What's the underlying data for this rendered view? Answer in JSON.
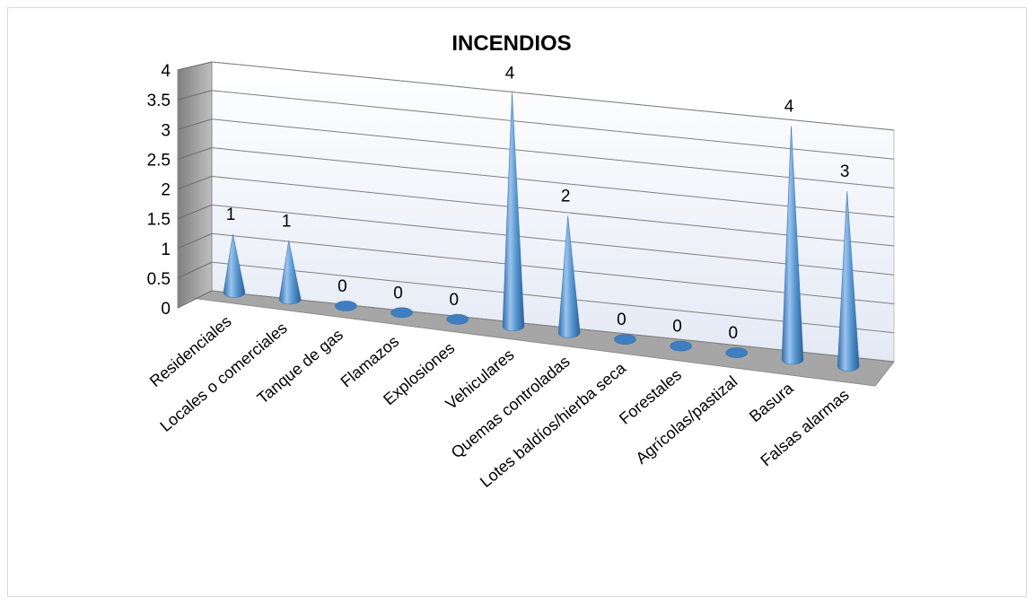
{
  "chart_data": {
    "type": "bar",
    "style": "3d-cone",
    "title": "INCENDIOS",
    "categories": [
      "Residenciales",
      "Locales o comerciales",
      "Tanque de gas",
      "Flamazos",
      "Explosiones",
      "Vehiculares",
      "Quemas controladas",
      "Lotes baldíos/hierba seca",
      "Forestales",
      "Agrícolas/pastizal",
      "Basura",
      "Falsas alarmas"
    ],
    "values": [
      1,
      1,
      0,
      0,
      0,
      4,
      2,
      0,
      0,
      0,
      4,
      3
    ],
    "value_labels": [
      "1",
      "1",
      "0",
      "0",
      "0",
      "4",
      "2",
      "0",
      "0",
      "0",
      "4",
      "3"
    ],
    "ylim": [
      0,
      4
    ],
    "yticks": [
      "0",
      "0.5",
      "1",
      "1.5",
      "2",
      "2.5",
      "3",
      "3.5",
      "4"
    ],
    "grid": true,
    "legend": "none",
    "colors": {
      "cone": "#5b9bd5",
      "cone_dark": "#2e6fae",
      "wall": "#eef1fa",
      "floor": "#a6a6a6",
      "side": "#8c8c8c"
    }
  }
}
